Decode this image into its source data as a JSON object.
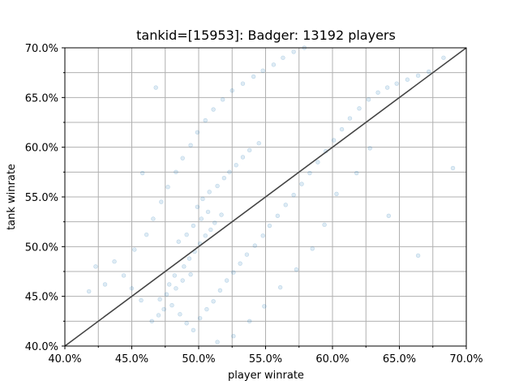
{
  "chart_data": {
    "type": "scatter",
    "title": "tankid=[15953]: Badger: 13192 players",
    "xlabel": "player winrate",
    "ylabel": "tank winrate",
    "xlim": [
      0.4,
      0.7
    ],
    "ylim": [
      0.4,
      0.7
    ],
    "x_ticks": [
      0.4,
      0.45,
      0.5,
      0.55,
      0.6,
      0.65,
      0.7
    ],
    "x_tick_labels": [
      "40.0%",
      "45.0%",
      "50.0%",
      "55.0%",
      "60.0%",
      "65.0%",
      "70.0%"
    ],
    "y_ticks": [
      0.4,
      0.45,
      0.5,
      0.55,
      0.6,
      0.65,
      0.7
    ],
    "y_tick_labels": [
      "40.0%",
      "45.0%",
      "50.0%",
      "55.0%",
      "60.0%",
      "65.0%",
      "70.0%"
    ],
    "grid": true,
    "minor_grid_step": 0.025,
    "point_color": "#1f77b4",
    "point_alpha": 0.15,
    "reference_line": {
      "from": [
        0.4,
        0.4
      ],
      "to": [
        0.7,
        0.7
      ],
      "color": "#444444"
    },
    "series": [
      {
        "points": [
          [
            0.478,
            0.462
          ],
          [
            0.482,
            0.471
          ],
          [
            0.489,
            0.48
          ],
          [
            0.493,
            0.488
          ],
          [
            0.497,
            0.495
          ],
          [
            0.501,
            0.503
          ],
          [
            0.505,
            0.511
          ],
          [
            0.509,
            0.517
          ],
          [
            0.512,
            0.524
          ],
          [
            0.517,
            0.532
          ],
          [
            0.485,
            0.505
          ],
          [
            0.491,
            0.512
          ],
          [
            0.496,
            0.521
          ],
          [
            0.502,
            0.528
          ],
          [
            0.507,
            0.535
          ],
          [
            0.471,
            0.447
          ],
          [
            0.476,
            0.452
          ],
          [
            0.483,
            0.458
          ],
          [
            0.488,
            0.466
          ],
          [
            0.494,
            0.472
          ],
          [
            0.499,
            0.54
          ],
          [
            0.503,
            0.548
          ],
          [
            0.508,
            0.555
          ],
          [
            0.514,
            0.561
          ],
          [
            0.519,
            0.569
          ],
          [
            0.523,
            0.575
          ],
          [
            0.528,
            0.582
          ],
          [
            0.533,
            0.59
          ],
          [
            0.538,
            0.597
          ],
          [
            0.545,
            0.604
          ],
          [
            0.465,
            0.425
          ],
          [
            0.47,
            0.431
          ],
          [
            0.474,
            0.437
          ],
          [
            0.48,
            0.441
          ],
          [
            0.486,
            0.432
          ],
          [
            0.491,
            0.423
          ],
          [
            0.496,
            0.416
          ],
          [
            0.501,
            0.428
          ],
          [
            0.506,
            0.437
          ],
          [
            0.511,
            0.445
          ],
          [
            0.516,
            0.456
          ],
          [
            0.521,
            0.466
          ],
          [
            0.526,
            0.474
          ],
          [
            0.531,
            0.483
          ],
          [
            0.536,
            0.492
          ],
          [
            0.542,
            0.501
          ],
          [
            0.548,
            0.511
          ],
          [
            0.553,
            0.521
          ],
          [
            0.559,
            0.531
          ],
          [
            0.565,
            0.542
          ],
          [
            0.571,
            0.552
          ],
          [
            0.577,
            0.563
          ],
          [
            0.583,
            0.574
          ],
          [
            0.589,
            0.585
          ],
          [
            0.595,
            0.596
          ],
          [
            0.601,
            0.607
          ],
          [
            0.607,
            0.618
          ],
          [
            0.613,
            0.629
          ],
          [
            0.62,
            0.639
          ],
          [
            0.627,
            0.648
          ],
          [
            0.634,
            0.655
          ],
          [
            0.641,
            0.66
          ],
          [
            0.648,
            0.664
          ],
          [
            0.656,
            0.668
          ],
          [
            0.664,
            0.672
          ],
          [
            0.672,
            0.676
          ],
          [
            0.683,
            0.69
          ],
          [
            0.69,
            0.579
          ],
          [
            0.664,
            0.491
          ],
          [
            0.642,
            0.531
          ],
          [
            0.628,
            0.599
          ],
          [
            0.618,
            0.574
          ],
          [
            0.603,
            0.553
          ],
          [
            0.594,
            0.522
          ],
          [
            0.585,
            0.498
          ],
          [
            0.573,
            0.477
          ],
          [
            0.561,
            0.459
          ],
          [
            0.549,
            0.44
          ],
          [
            0.538,
            0.425
          ],
          [
            0.526,
            0.41
          ],
          [
            0.514,
            0.404
          ],
          [
            0.457,
            0.446
          ],
          [
            0.45,
            0.458
          ],
          [
            0.444,
            0.471
          ],
          [
            0.437,
            0.485
          ],
          [
            0.43,
            0.462
          ],
          [
            0.423,
            0.48
          ],
          [
            0.418,
            0.455
          ],
          [
            0.452,
            0.497
          ],
          [
            0.461,
            0.512
          ],
          [
            0.466,
            0.528
          ],
          [
            0.472,
            0.545
          ],
          [
            0.477,
            0.56
          ],
          [
            0.483,
            0.575
          ],
          [
            0.488,
            0.589
          ],
          [
            0.494,
            0.602
          ],
          [
            0.499,
            0.615
          ],
          [
            0.505,
            0.627
          ],
          [
            0.511,
            0.638
          ],
          [
            0.518,
            0.648
          ],
          [
            0.525,
            0.657
          ],
          [
            0.533,
            0.664
          ],
          [
            0.541,
            0.671
          ],
          [
            0.548,
            0.677
          ],
          [
            0.556,
            0.683
          ],
          [
            0.563,
            0.69
          ],
          [
            0.571,
            0.696
          ],
          [
            0.579,
            0.7
          ],
          [
            0.468,
            0.66
          ],
          [
            0.458,
            0.574
          ]
        ]
      }
    ]
  }
}
